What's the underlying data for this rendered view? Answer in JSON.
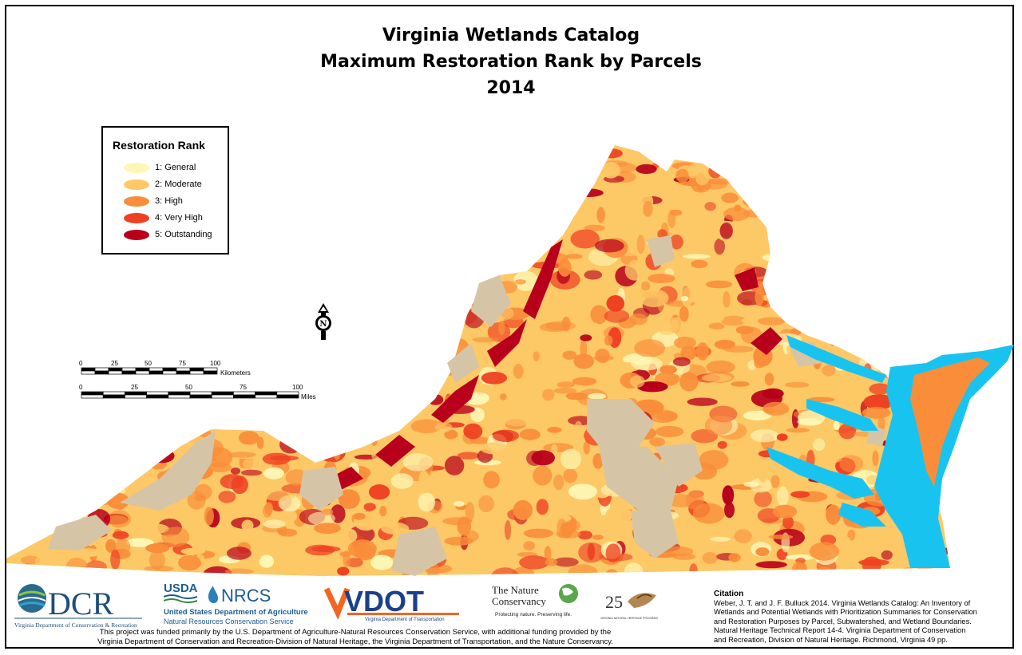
{
  "title": {
    "line1": "Virginia Wetlands Catalog",
    "line2": "Maximum Restoration Rank by Parcels",
    "line3": "2014"
  },
  "legend": {
    "title": "Restoration Rank",
    "items": [
      {
        "label": "1: General",
        "color": "#fdf7b5"
      },
      {
        "label": "2: Moderate",
        "color": "#fdc866"
      },
      {
        "label": "3: High",
        "color": "#f98d3a"
      },
      {
        "label": "4: Very High",
        "color": "#ee4022"
      },
      {
        "label": "5: Outstanding",
        "color": "#b8001c"
      }
    ]
  },
  "map_colors": {
    "water": "#19c3f0",
    "excluded": "#d6c4a6",
    "general": "#fdf7b5",
    "moderate": "#fdc866",
    "high": "#f98d3a",
    "very_high": "#ee4022",
    "outstanding": "#b8001c"
  },
  "scale": {
    "km_ticks": [
      "0",
      "25",
      "50",
      "75",
      "100"
    ],
    "km_unit": "Kilometers",
    "mi_ticks": [
      "0",
      "25",
      "50",
      "75",
      "100"
    ],
    "mi_unit": "Miles"
  },
  "north_arrow": {
    "icon": "north-arrow-icon",
    "letter": "N"
  },
  "logos": {
    "dcr": {
      "text": "DCR",
      "subtitle": "Virginia Department of Conservation & Recreation"
    },
    "nrcs": {
      "usda": "USDA",
      "text": "NRCS",
      "line1": "United States Department of Agriculture",
      "line2": "Natural Resources Conservation Service"
    },
    "vdot": {
      "text": "VDOT",
      "subtitle": "Virginia Department of Transportation"
    },
    "tnc": {
      "line1": "The Nature",
      "line2": "Conservancy",
      "tagline": "Protecting nature. Preserving life."
    },
    "vnhp": {
      "number": "25",
      "subtitle": "VIRGINIA NATURAL HERITAGE PROGRAM"
    }
  },
  "funding": {
    "line1": "This project was funded primarily by the U.S. Department of Agriculture-Natural Resources Conservation Service, with additional funding provided by the",
    "line2": "Virginia Department of Conservation and Recreation-Division of Natural Heritage, the Virginia Department of Transportation, and the Nature Conservancy."
  },
  "citation": {
    "heading": "Citation",
    "lines": [
      "Weber, J. T. and J. F. Bulluck 2014. Virginia Wetlands Catalog: An Inventory of",
      "Wetlands and Potential Wetlands with Prioritization Summaries for Conservation",
      "and Restoration Purposes by Parcel, Subwatershed, and Wetland Boundaries.",
      "Natural Heritage Technical Report 14-4. Virginia Department of Conservation",
      "and Recreation, Division of Natural Heritage. Richmond, Virginia 49 pp."
    ]
  }
}
